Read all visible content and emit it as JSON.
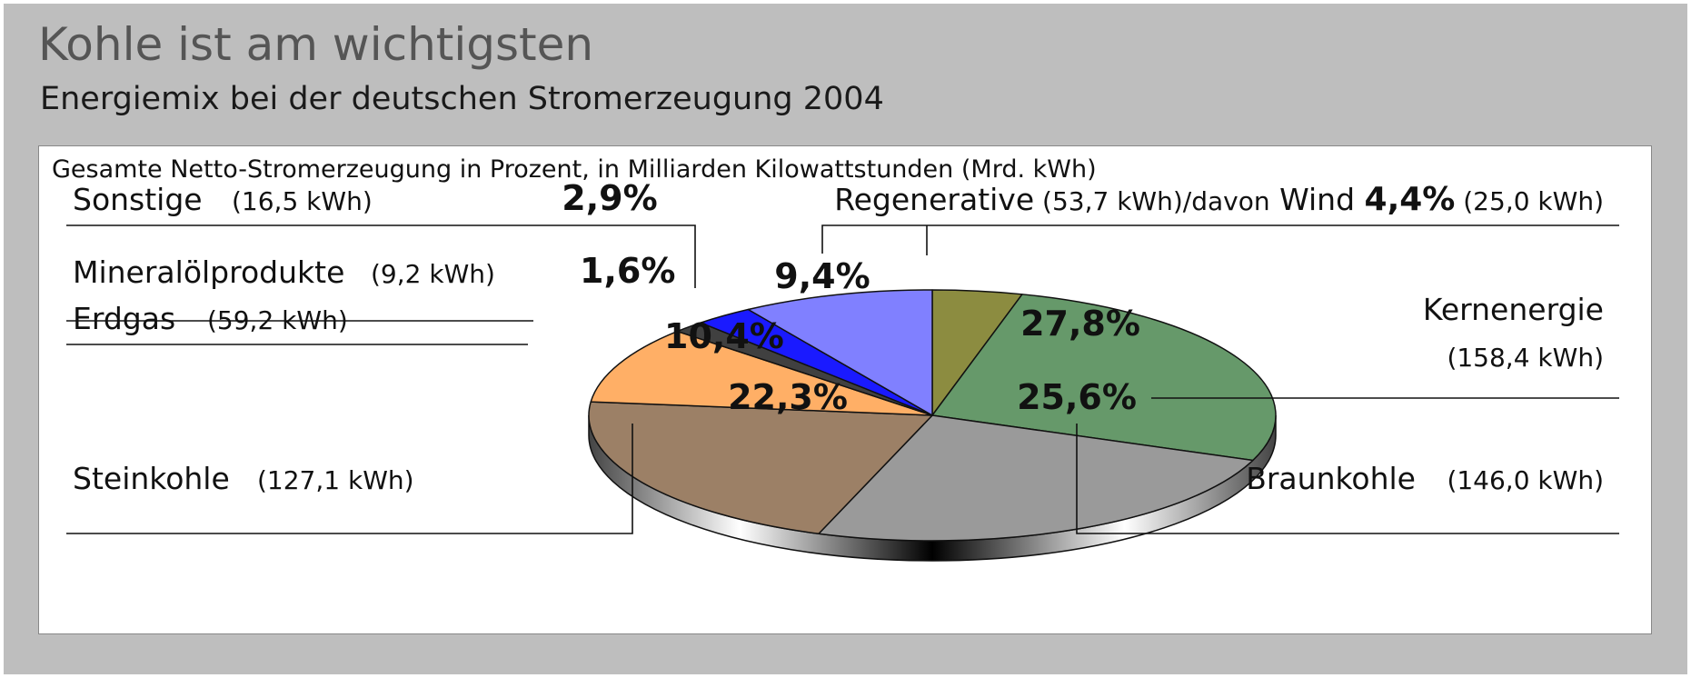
{
  "title": "Kohle ist am wichtigsten",
  "subtitle": "Energiemix bei der deutschen Stromerzeugung 2004",
  "chart_data": {
    "type": "pie",
    "description": "Gesamte Netto-Stromerzeugung in Prozent, in Milliarden Kilowattstunden (Mrd. kWh)",
    "series": [
      {
        "name": "Kernenergie",
        "value": 27.8,
        "value_label": "27,8%",
        "amount_label": "(158,4 kWh)",
        "color": "#66996a"
      },
      {
        "name": "Braunkohle",
        "value": 25.6,
        "value_label": "25,6%",
        "amount_label": "(146,0 kWh)",
        "color": "#9a9a9a"
      },
      {
        "name": "Steinkohle",
        "value": 22.3,
        "value_label": "22,3%",
        "amount_label": "(127,1 kWh)",
        "color": "#9c8066"
      },
      {
        "name": "Erdgas",
        "value": 10.4,
        "value_label": "10,4%",
        "amount_label": "(59,2 kWh)",
        "color": "#ffaf66"
      },
      {
        "name": "Mineralölprodukte",
        "value": 1.6,
        "value_label": "1,6%",
        "amount_label": "(9,2 kWh)",
        "color": "#404040"
      },
      {
        "name": "Sonstige",
        "value": 2.9,
        "value_label": "2,9%",
        "amount_label": "(16,5 kWh)",
        "color": "#1a1aff"
      },
      {
        "name": "Regenerative",
        "value": 9.4,
        "value_label": "9,4%",
        "amount_label": "(53,7 kWh)",
        "color": "#8080ff"
      },
      {
        "name": "Wind",
        "value": 4.4,
        "value_label": "4,4%",
        "amount_label": "(25,0 kWh)",
        "color": "#8c8c40",
        "part_of": "Regenerative"
      }
    ],
    "regenerative_label": "Regenerative",
    "regenerative_amount": "(53,7 kWh)/davon",
    "wind_label": "Wind",
    "wind_pct": "4,4%",
    "wind_amount": "(25,0 kWh)"
  }
}
